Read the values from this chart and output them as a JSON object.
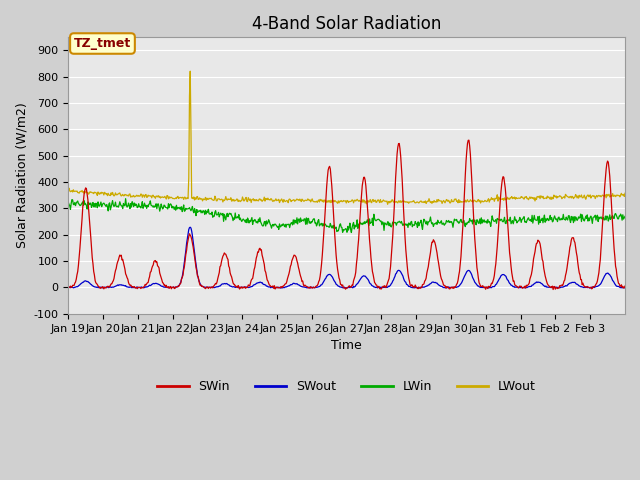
{
  "title": "4-Band Solar Radiation",
  "xlabel": "Time",
  "ylabel": "Solar Radiation (W/m2)",
  "ylim": [
    -100,
    950
  ],
  "yticks": [
    -100,
    0,
    100,
    200,
    300,
    400,
    500,
    600,
    700,
    800,
    900
  ],
  "xtick_labels": [
    "Jan 19",
    "Jan 20",
    "Jan 21",
    "Jan 22",
    "Jan 23",
    "Jan 24",
    "Jan 25",
    "Jan 26",
    "Jan 27",
    "Jan 28",
    "Jan 29",
    "Jan 30",
    "Jan 31",
    "Feb 1",
    "Feb 2",
    "Feb 3"
  ],
  "xtick_positions": [
    0,
    1,
    2,
    3,
    4,
    5,
    6,
    7,
    8,
    9,
    10,
    11,
    12,
    13,
    14,
    15
  ],
  "n_days": 16,
  "legend_labels": [
    "SWin",
    "SWout",
    "LWin",
    "LWout"
  ],
  "legend_colors": [
    "#cc0000",
    "#0000cc",
    "#00aa00",
    "#ccaa00"
  ],
  "background_color": "#e8e8e8",
  "annotation_text": "TZ_tmet",
  "annotation_box_color": "#ffffcc",
  "annotation_border_color": "#cc8800",
  "title_fontsize": 12,
  "axis_fontsize": 9,
  "tick_fontsize": 8
}
